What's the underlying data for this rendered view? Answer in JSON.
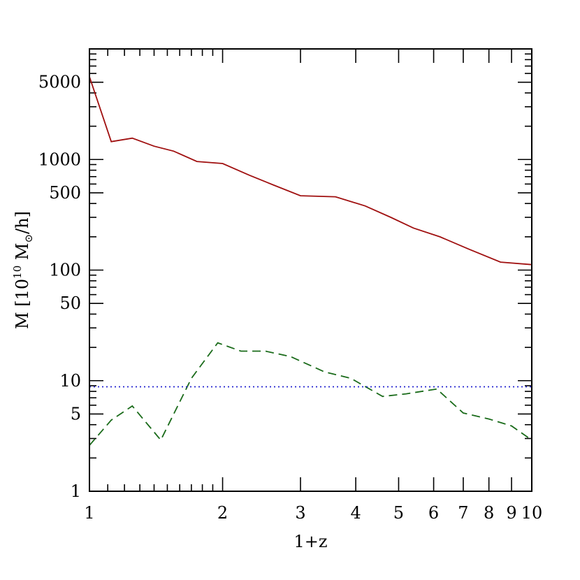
{
  "chart_data": {
    "type": "line",
    "xlabel": "1+z",
    "ylabel": {
      "prefix": "M [10",
      "exponent": "10",
      "middle": " M",
      "subscript": "⊙",
      "suffix": "/h]"
    },
    "x_scale": "log",
    "y_scale": "log",
    "xlim": [
      1,
      10
    ],
    "ylim": [
      1,
      10000
    ],
    "x_ticks": [
      {
        "value": 1,
        "label": "1"
      },
      {
        "value": 2,
        "label": "2"
      },
      {
        "value": 3,
        "label": "3"
      },
      {
        "value": 4,
        "label": "4"
      },
      {
        "value": 5,
        "label": "5"
      },
      {
        "value": 6,
        "label": "6"
      },
      {
        "value": 7,
        "label": "7"
      },
      {
        "value": 8,
        "label": "8"
      },
      {
        "value": 9,
        "label": "9"
      },
      {
        "value": 10,
        "label": "10"
      }
    ],
    "y_ticks": [
      {
        "value": 1,
        "label": "1"
      },
      {
        "value": 5,
        "label": "5"
      },
      {
        "value": 10,
        "label": "10"
      },
      {
        "value": 50,
        "label": "50"
      },
      {
        "value": 100,
        "label": "100"
      },
      {
        "value": 500,
        "label": "500"
      },
      {
        "value": 1000,
        "label": "1000"
      },
      {
        "value": 5000,
        "label": "5000"
      }
    ],
    "grid": false,
    "series": [
      {
        "style": "solid",
        "color": "#a01010",
        "x": [
          1.0,
          1.12,
          1.25,
          1.4,
          1.55,
          1.75,
          2.0,
          2.3,
          2.6,
          3.0,
          3.6,
          4.2,
          4.8,
          5.4,
          6.2,
          7.2,
          8.5,
          10.0
        ],
        "y": [
          5600,
          1450,
          1560,
          1320,
          1190,
          960,
          920,
          720,
          590,
          470,
          460,
          380,
          300,
          240,
          200,
          155,
          118,
          112
        ]
      },
      {
        "style": "dashed",
        "color": "#1a6b1a",
        "x": [
          1.0,
          1.12,
          1.25,
          1.45,
          1.7,
          1.95,
          2.2,
          2.5,
          2.85,
          3.4,
          3.9,
          4.6,
          5.2,
          6.1,
          7.0,
          8.0,
          9.0,
          10.0
        ],
        "y": [
          2.6,
          4.4,
          5.9,
          2.9,
          10.5,
          22,
          18.5,
          18.5,
          16.5,
          12,
          10.5,
          7.2,
          7.6,
          8.4,
          5.1,
          4.5,
          3.9,
          2.9
        ]
      },
      {
        "style": "dotted",
        "color": "#2020d0",
        "x": [
          1.0,
          10.0
        ],
        "y": [
          8.8,
          8.8
        ]
      }
    ]
  }
}
